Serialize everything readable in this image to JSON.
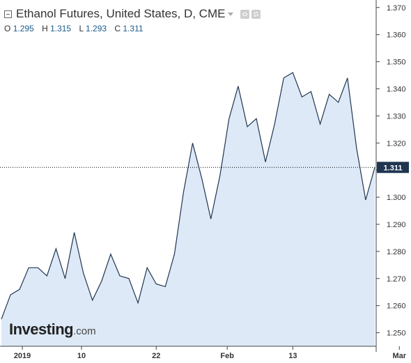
{
  "header": {
    "title": "Ethanol Futures, United States, D, CME",
    "ohlc": [
      {
        "key": "O",
        "value": "1.295"
      },
      {
        "key": "H",
        "value": "1.315"
      },
      {
        "key": "L",
        "value": "1.293"
      },
      {
        "key": "C",
        "value": "1.311"
      }
    ]
  },
  "logo": {
    "main": "Investing",
    "suffix": ".com"
  },
  "colors": {
    "line": "#1f3550",
    "fill": "#dde9f7",
    "axis": "#444444",
    "badge": "#1f3550"
  },
  "chart_data": {
    "type": "area",
    "ylim": [
      1.245,
      1.372
    ],
    "y_ticks": [
      1.25,
      1.26,
      1.27,
      1.28,
      1.29,
      1.3,
      1.31,
      1.32,
      1.33,
      1.34,
      1.35,
      1.36,
      1.37
    ],
    "y_tick_labels": [
      "1.250",
      "1.260",
      "1.270",
      "1.280",
      "1.290",
      "1.300",
      "1.310",
      "1.320",
      "1.330",
      "1.340",
      "1.350",
      "1.360",
      "1.370"
    ],
    "x_labels": [
      {
        "label": "2019",
        "index": 2.3
      },
      {
        "label": "10",
        "index": 8.8
      },
      {
        "label": "22",
        "index": 17
      },
      {
        "label": "Feb",
        "index": 24.8
      },
      {
        "label": "13",
        "index": 32
      },
      {
        "label": "Mar",
        "index": 43.7
      }
    ],
    "values": [
      1.255,
      1.264,
      1.266,
      1.274,
      1.274,
      1.271,
      1.281,
      1.27,
      1.287,
      1.272,
      1.262,
      1.269,
      1.279,
      1.271,
      1.27,
      1.261,
      1.274,
      1.268,
      1.267,
      1.279,
      1.302,
      1.32,
      1.307,
      1.292,
      1.308,
      1.329,
      1.341,
      1.326,
      1.329,
      1.313,
      1.327,
      1.344,
      1.346,
      1.337,
      1.339,
      1.327,
      1.338,
      1.335,
      1.344,
      1.318,
      1.299,
      1.311
    ],
    "last_value": 1.311,
    "last_label": "1.311"
  }
}
